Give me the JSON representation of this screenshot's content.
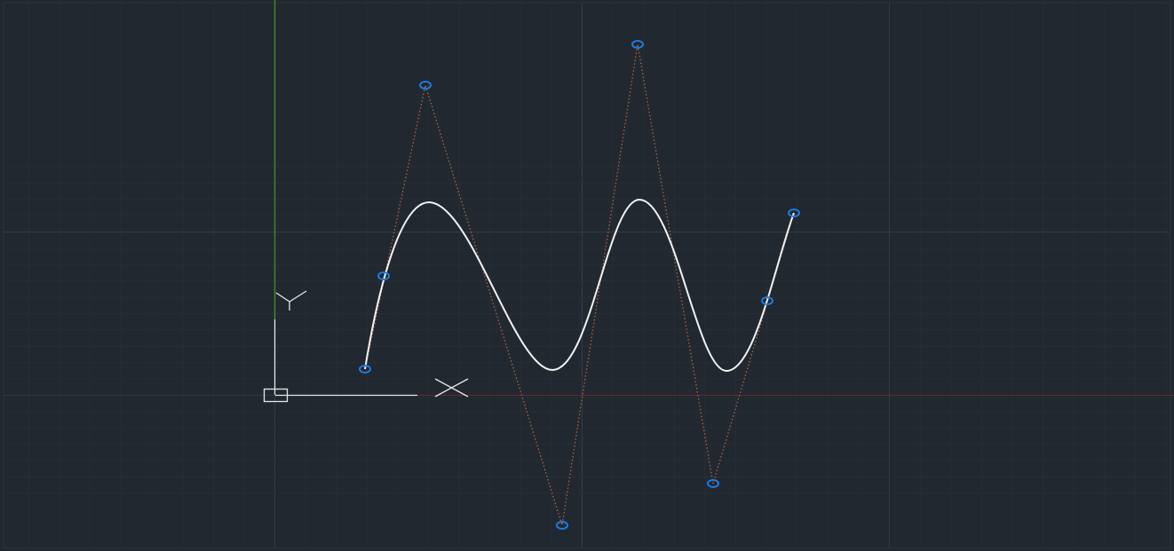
{
  "ucs_icon": {
    "x_label": "X",
    "y_label": "Y"
  }
}
